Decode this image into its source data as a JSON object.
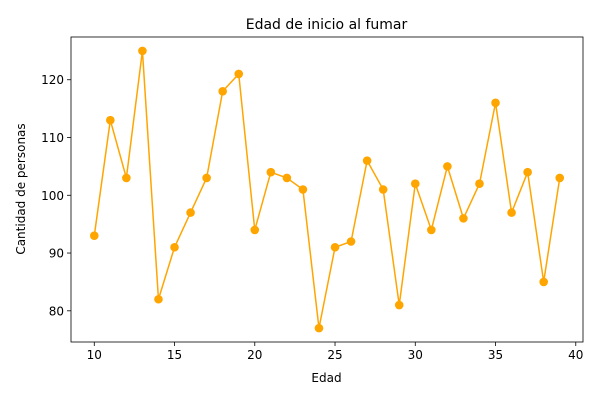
{
  "chart_data": {
    "type": "line",
    "title": "Edad de inicio al fumar",
    "xlabel": "Edad",
    "ylabel": "Cantidad de personas",
    "x": [
      10,
      11,
      12,
      13,
      14,
      15,
      16,
      17,
      18,
      19,
      20,
      21,
      22,
      23,
      24,
      25,
      26,
      27,
      28,
      29,
      30,
      31,
      32,
      33,
      34,
      35,
      36,
      37,
      38,
      39
    ],
    "series": [
      {
        "values": [
          93,
          113,
          103,
          125,
          82,
          91,
          97,
          103,
          118,
          121,
          94,
          104,
          103,
          101,
          77,
          91,
          92,
          106,
          101,
          81,
          102,
          94,
          105,
          96,
          102,
          116,
          97,
          104,
          85,
          103
        ],
        "color": "#FFA500",
        "marker": "circle"
      }
    ],
    "xlim": [
      8.55,
      40.45
    ],
    "ylim": [
      74.6,
      127.4
    ],
    "xticks": [
      10,
      15,
      20,
      25,
      30,
      35,
      40
    ],
    "yticks": [
      80,
      90,
      100,
      110,
      120
    ],
    "grid": false,
    "legend": false
  }
}
